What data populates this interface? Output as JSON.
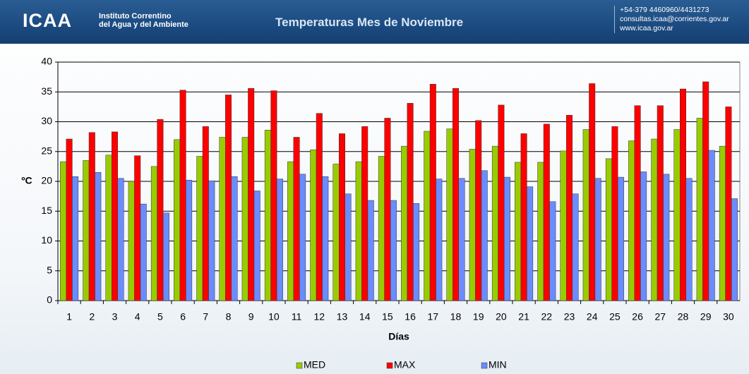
{
  "header": {
    "logo": "ICAA",
    "institution": [
      "Instituto Correntino",
      "del Agua y del Ambiente"
    ],
    "contact": [
      "+54-379 4460960/4431273",
      "consultas.icaa@corrientes.gov.ar",
      "www.icaa.gov.ar"
    ]
  },
  "chart_data": {
    "type": "bar",
    "title": "Temperaturas Mes de Noviembre",
    "x_label": "Días",
    "y_label": "ºC",
    "categories": [
      "1",
      "2",
      "3",
      "4",
      "5",
      "6",
      "7",
      "8",
      "9",
      "10",
      "11",
      "12",
      "13",
      "14",
      "15",
      "16",
      "17",
      "18",
      "19",
      "20",
      "21",
      "22",
      "23",
      "24",
      "25",
      "26",
      "27",
      "28",
      "29",
      "30"
    ],
    "series": [
      {
        "name": "MED",
        "color": "#99cc00",
        "values": [
          23.3,
          23.5,
          24.4,
          20.0,
          22.5,
          27.0,
          24.2,
          27.4,
          27.4,
          28.6,
          23.3,
          25.3,
          22.9,
          23.3,
          24.2,
          25.9,
          28.4,
          28.8,
          25.4,
          25.9,
          23.2,
          23.2,
          25.1,
          28.7,
          23.8,
          26.8,
          27.1,
          28.7,
          30.6,
          25.9
        ]
      },
      {
        "name": "MAX",
        "color": "#ff0000",
        "values": [
          27.1,
          28.2,
          28.3,
          24.3,
          30.4,
          35.3,
          29.2,
          34.5,
          35.6,
          35.2,
          27.4,
          31.4,
          28.0,
          29.2,
          30.6,
          33.1,
          36.3,
          35.6,
          30.2,
          32.8,
          28.0,
          29.6,
          31.1,
          36.4,
          29.2,
          32.7,
          32.7,
          35.5,
          36.7,
          32.5
        ]
      },
      {
        "name": "MIN",
        "color": "#6a8cff",
        "values": [
          20.8,
          21.5,
          20.5,
          16.2,
          14.7,
          20.2,
          20.1,
          20.8,
          18.4,
          20.4,
          21.2,
          20.8,
          17.9,
          16.8,
          16.8,
          16.3,
          20.4,
          20.5,
          21.8,
          20.7,
          19.1,
          16.6,
          17.9,
          20.5,
          20.7,
          21.6,
          21.2,
          20.5,
          25.2,
          17.1
        ]
      }
    ],
    "ylim": [
      0,
      40
    ],
    "yticks": [
      0,
      5,
      10,
      15,
      20,
      25,
      30,
      35,
      40
    ],
    "grid": true,
    "legend": "bottom"
  }
}
